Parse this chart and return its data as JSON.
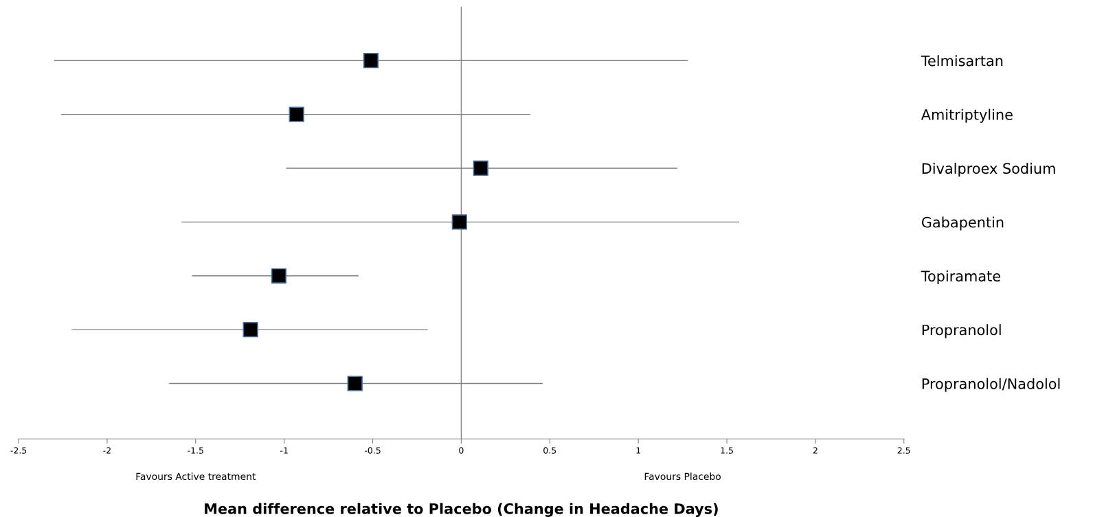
{
  "chart_data": {
    "type": "scatter",
    "orientation": "horizontal",
    "categories": [
      "Telmisartan",
      "Amitriptyline",
      "Divalproex Sodium",
      "Gabapentin",
      "Topiramate",
      "Propranolol",
      "Propranolol/Nadolol"
    ],
    "values": [
      -0.51,
      -0.93,
      0.11,
      -0.01,
      -1.03,
      -1.19,
      -0.6
    ],
    "errors": [
      [
        -2.3,
        1.28
      ],
      [
        -2.26,
        0.39
      ],
      [
        -0.99,
        1.22
      ],
      [
        -1.58,
        1.57
      ],
      [
        -1.52,
        -0.58
      ],
      [
        -2.2,
        -0.19
      ],
      [
        -1.65,
        0.46
      ]
    ],
    "color": "#000000",
    "marker": "square",
    "xlim": [
      -2.5,
      2.5
    ],
    "xticks": [
      -2.5,
      -2,
      -1.5,
      -1,
      -0.5,
      0,
      0.5,
      1,
      1.5,
      2,
      2.5
    ],
    "xlabel": "Mean difference relative to Placebo (Change in Headache Days)",
    "ref_lines": [
      {
        "axis": "x",
        "value": 0,
        "color": "#808080"
      }
    ],
    "annotations": [
      "Favours Active treatment",
      "Favours Placebo"
    ],
    "grid": false,
    "legend": false
  }
}
